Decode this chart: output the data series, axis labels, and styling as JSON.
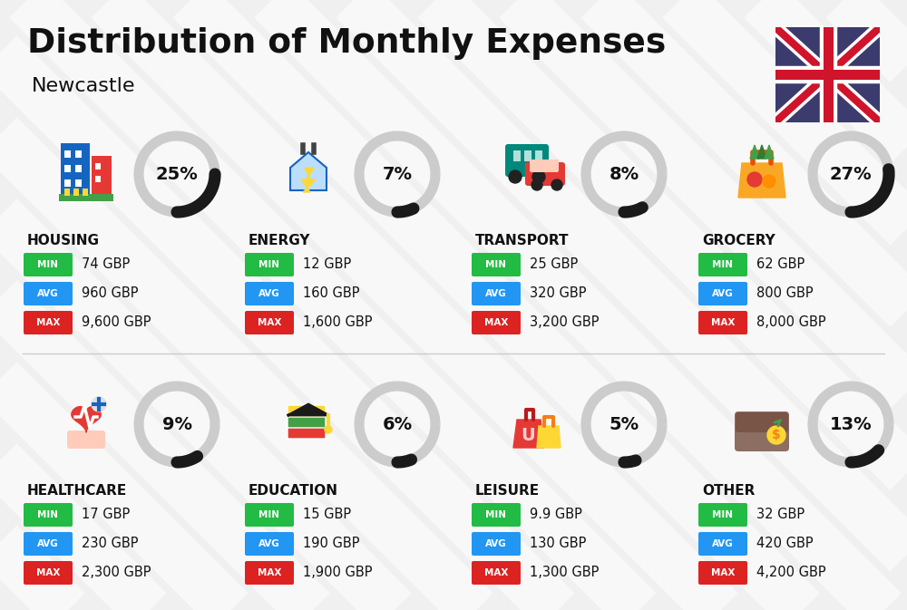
{
  "title": "Distribution of Monthly Expenses",
  "subtitle": "Newcastle",
  "bg_color": "#f0f0f0",
  "categories": [
    {
      "name": "HOUSING",
      "pct": 25,
      "min_val": "74 GBP",
      "avg_val": "960 GBP",
      "max_val": "9,600 GBP",
      "col": 0,
      "row": 0
    },
    {
      "name": "ENERGY",
      "pct": 7,
      "min_val": "12 GBP",
      "avg_val": "160 GBP",
      "max_val": "1,600 GBP",
      "col": 1,
      "row": 0
    },
    {
      "name": "TRANSPORT",
      "pct": 8,
      "min_val": "25 GBP",
      "avg_val": "320 GBP",
      "max_val": "3,200 GBP",
      "col": 2,
      "row": 0
    },
    {
      "name": "GROCERY",
      "pct": 27,
      "min_val": "62 GBP",
      "avg_val": "800 GBP",
      "max_val": "8,000 GBP",
      "col": 3,
      "row": 0
    },
    {
      "name": "HEALTHCARE",
      "pct": 9,
      "min_val": "17 GBP",
      "avg_val": "230 GBP",
      "max_val": "2,300 GBP",
      "col": 0,
      "row": 1
    },
    {
      "name": "EDUCATION",
      "pct": 6,
      "min_val": "15 GBP",
      "avg_val": "190 GBP",
      "max_val": "1,900 GBP",
      "col": 1,
      "row": 1
    },
    {
      "name": "LEISURE",
      "pct": 5,
      "min_val": "9.9 GBP",
      "avg_val": "130 GBP",
      "max_val": "1,300 GBP",
      "col": 2,
      "row": 1
    },
    {
      "name": "OTHER",
      "pct": 13,
      "min_val": "32 GBP",
      "avg_val": "420 GBP",
      "max_val": "4,200 GBP",
      "col": 3,
      "row": 1
    }
  ],
  "min_color": "#22bb44",
  "avg_color": "#2196f3",
  "max_color": "#dd2222",
  "donut_track_color": "#cccccc",
  "donut_arc_color": "#1a1a1a",
  "title_color": "#111111",
  "value_color": "#111111",
  "white_stripe_color": "#ffffff",
  "divider_color": "#cccccc",
  "icon_colors": {
    "HOUSING": [
      "#1565c0",
      "#e53935",
      "#43a047"
    ],
    "ENERGY": [
      "#1565c0",
      "#fdd835",
      "#1a1a1a"
    ],
    "TRANSPORT": [
      "#00897b",
      "#fdd835",
      "#e53935"
    ],
    "GROCERY": [
      "#f9a825",
      "#43a047"
    ],
    "HEALTHCARE": [
      "#e53935",
      "#1565c0",
      "#ffccbc"
    ],
    "EDUCATION": [
      "#1565c0",
      "#fdd835",
      "#e53935"
    ],
    "LEISURE": [
      "#e53935",
      "#fdd835"
    ],
    "OTHER": [
      "#8d6e63",
      "#fdd835",
      "#43a047"
    ]
  }
}
